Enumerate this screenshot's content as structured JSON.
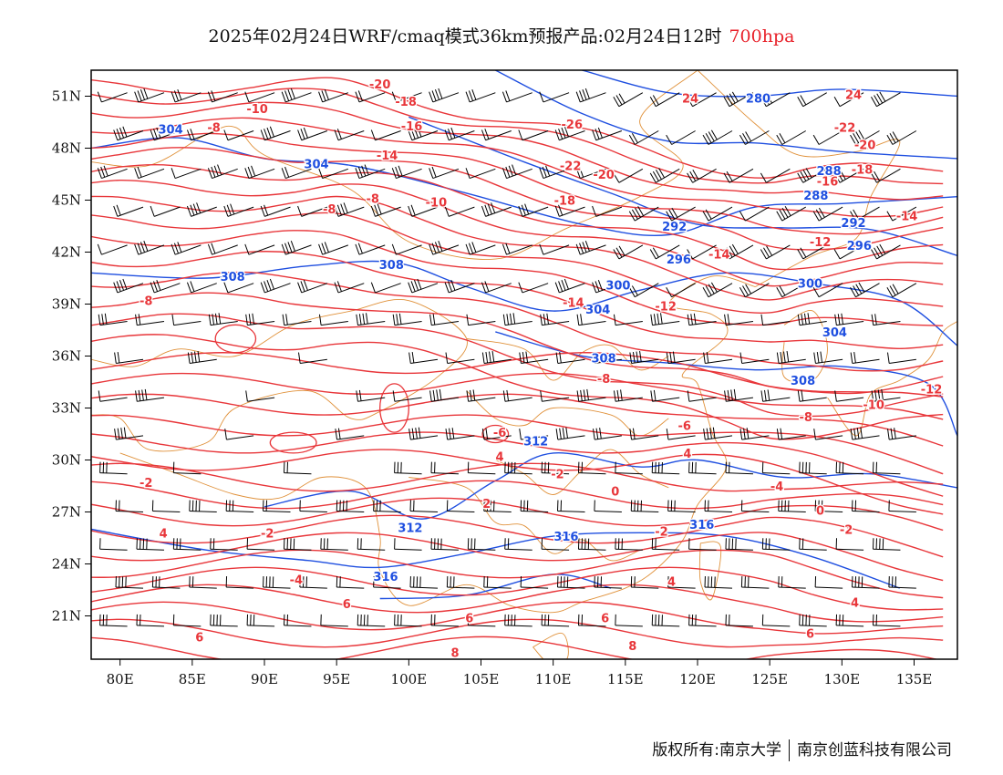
{
  "header": {
    "title": "2025年02月24日WRF/cmaq模式36km预报产品:02月24日12时",
    "level": "700hpa"
  },
  "footer": {
    "copyright_left": "版权所有:南京大学",
    "copyright_right": "南京创蓝科技有限公司"
  },
  "map": {
    "lon_range": [
      78,
      138
    ],
    "lat_range": [
      18.5,
      52.5
    ],
    "lon_ticks": [
      "80E",
      "85E",
      "90E",
      "95E",
      "100E",
      "105E",
      "110E",
      "115E",
      "120E",
      "125E",
      "130E",
      "135E"
    ],
    "lat_ticks": [
      "21N",
      "24N",
      "27N",
      "30N",
      "33N",
      "36N",
      "39N",
      "42N",
      "45N",
      "48N",
      "51N"
    ],
    "colors": {
      "temperature": "#e8363a",
      "geopotential": "#1f4fe0",
      "borders": "#e0913a",
      "wind": "#000000"
    },
    "temperature_labels": [
      {
        "text": "-20",
        "lon": 98,
        "lat": 51.7
      },
      {
        "text": "-10",
        "lon": 89.5,
        "lat": 50.3
      },
      {
        "text": "-8",
        "lon": 86.5,
        "lat": 49.2
      },
      {
        "text": "-18",
        "lon": 99.8,
        "lat": 50.7
      },
      {
        "text": "-16",
        "lon": 100.2,
        "lat": 49.3
      },
      {
        "text": "-14",
        "lon": 98.5,
        "lat": 47.6
      },
      {
        "text": "-26",
        "lon": 111.3,
        "lat": 49.4
      },
      {
        "text": "24",
        "lon": 119.5,
        "lat": 50.9
      },
      {
        "text": "24",
        "lon": 130.8,
        "lat": 51.1
      },
      {
        "text": "-22",
        "lon": 130.2,
        "lat": 49.2
      },
      {
        "text": "-20",
        "lon": 131.6,
        "lat": 48.2
      },
      {
        "text": "-18",
        "lon": 131.4,
        "lat": 46.8
      },
      {
        "text": "-16",
        "lon": 129,
        "lat": 46.1
      },
      {
        "text": "-14",
        "lon": 134.5,
        "lat": 44.1
      },
      {
        "text": "-22",
        "lon": 111.2,
        "lat": 47.0
      },
      {
        "text": "-20",
        "lon": 113.5,
        "lat": 46.5
      },
      {
        "text": "-18",
        "lon": 110.8,
        "lat": 45.0
      },
      {
        "text": "-8",
        "lon": 94.5,
        "lat": 44.5
      },
      {
        "text": "-8",
        "lon": 97.5,
        "lat": 45.1
      },
      {
        "text": "-10",
        "lon": 101.9,
        "lat": 44.9
      },
      {
        "text": "-14",
        "lon": 121.5,
        "lat": 41.9
      },
      {
        "text": "-12",
        "lon": 128.5,
        "lat": 42.6
      },
      {
        "text": "-14",
        "lon": 111.4,
        "lat": 39.1
      },
      {
        "text": "-12",
        "lon": 117.8,
        "lat": 38.9
      },
      {
        "text": "-8",
        "lon": 81.8,
        "lat": 39.2
      },
      {
        "text": "-8",
        "lon": 113.5,
        "lat": 34.7
      },
      {
        "text": "-12",
        "lon": 136.2,
        "lat": 34.1
      },
      {
        "text": "-10",
        "lon": 132.2,
        "lat": 33.2
      },
      {
        "text": "-8",
        "lon": 127.5,
        "lat": 32.5
      },
      {
        "text": "-6",
        "lon": 106.3,
        "lat": 31.6
      },
      {
        "text": "-6",
        "lon": 119.1,
        "lat": 32.0
      },
      {
        "text": "4",
        "lon": 106.3,
        "lat": 30.2
      },
      {
        "text": "4",
        "lon": 119.3,
        "lat": 30.4
      },
      {
        "text": "-2",
        "lon": 110.3,
        "lat": 29.2
      },
      {
        "text": "0",
        "lon": 114.3,
        "lat": 28.2
      },
      {
        "text": "-4",
        "lon": 125.5,
        "lat": 28.5
      },
      {
        "text": "0",
        "lon": 128.5,
        "lat": 27.1
      },
      {
        "text": "-2",
        "lon": 81.8,
        "lat": 28.7
      },
      {
        "text": "-2",
        "lon": 90.2,
        "lat": 25.8
      },
      {
        "text": "2",
        "lon": 105.4,
        "lat": 27.5
      },
      {
        "text": "4",
        "lon": 83,
        "lat": 25.8
      },
      {
        "text": "-2",
        "lon": 117.5,
        "lat": 25.9
      },
      {
        "text": "-2",
        "lon": 130.3,
        "lat": 26.0
      },
      {
        "text": "-4",
        "lon": 92.2,
        "lat": 23.1
      },
      {
        "text": "6",
        "lon": 95.7,
        "lat": 21.7
      },
      {
        "text": "6",
        "lon": 104.2,
        "lat": 20.9
      },
      {
        "text": "6",
        "lon": 113.6,
        "lat": 20.9
      },
      {
        "text": "4",
        "lon": 118.2,
        "lat": 23.0
      },
      {
        "text": "4",
        "lon": 130.9,
        "lat": 21.8
      },
      {
        "text": "6",
        "lon": 127.8,
        "lat": 20.0
      },
      {
        "text": "6",
        "lon": 85.5,
        "lat": 19.8
      },
      {
        "text": "8",
        "lon": 115.5,
        "lat": 19.3
      },
      {
        "text": "8",
        "lon": 103.2,
        "lat": 18.9
      }
    ],
    "height_labels": [
      {
        "text": "304",
        "lon": 83.5,
        "lat": 49.1
      },
      {
        "text": "304",
        "lon": 93.6,
        "lat": 47.1
      },
      {
        "text": "280",
        "lon": 124.2,
        "lat": 50.9
      },
      {
        "text": "288",
        "lon": 129.1,
        "lat": 46.7
      },
      {
        "text": "288",
        "lon": 128.2,
        "lat": 45.3
      },
      {
        "text": "292",
        "lon": 118.4,
        "lat": 43.5
      },
      {
        "text": "292",
        "lon": 130.8,
        "lat": 43.7
      },
      {
        "text": "296",
        "lon": 118.7,
        "lat": 41.6
      },
      {
        "text": "296",
        "lon": 131.2,
        "lat": 42.4
      },
      {
        "text": "300",
        "lon": 114.5,
        "lat": 40.1
      },
      {
        "text": "300",
        "lon": 127.8,
        "lat": 40.2
      },
      {
        "text": "304",
        "lon": 113.1,
        "lat": 38.7
      },
      {
        "text": "304",
        "lon": 129.5,
        "lat": 37.4
      },
      {
        "text": "308",
        "lon": 87.8,
        "lat": 40.6
      },
      {
        "text": "308",
        "lon": 98.8,
        "lat": 41.3
      },
      {
        "text": "308",
        "lon": 113.5,
        "lat": 35.9
      },
      {
        "text": "308",
        "lon": 127.3,
        "lat": 34.6
      },
      {
        "text": "312",
        "lon": 108.8,
        "lat": 31.1
      },
      {
        "text": "312",
        "lon": 100.1,
        "lat": 26.1
      },
      {
        "text": "316",
        "lon": 110.9,
        "lat": 25.6
      },
      {
        "text": "316",
        "lon": 120.3,
        "lat": 26.3
      },
      {
        "text": "316",
        "lon": 98.4,
        "lat": 23.3
      }
    ]
  }
}
